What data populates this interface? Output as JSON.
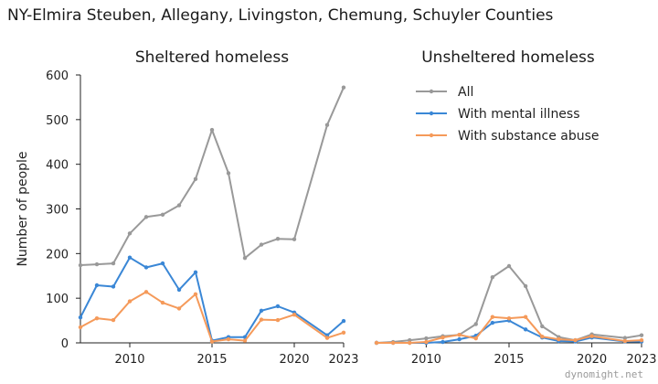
{
  "title": "NY-Elmira Steuben, Allegany, Livingston, Chemung, Schuyler Counties",
  "watermark": "dynomight.net",
  "legend_placement": "top-right of second panel",
  "chart_data": [
    {
      "type": "line",
      "title": "Sheltered homeless",
      "ylabel": "Number of people",
      "xlabel": "",
      "xlim": [
        2007,
        2023
      ],
      "ylim": [
        0,
        600
      ],
      "xticks": [
        2010,
        2015,
        2020,
        2023
      ],
      "yticks": [
        0,
        100,
        200,
        300,
        400,
        500,
        600
      ],
      "x": [
        2007,
        2008,
        2009,
        2010,
        2011,
        2012,
        2013,
        2014,
        2015,
        2016,
        2017,
        2018,
        2019,
        2020,
        2022,
        2023
      ],
      "series": [
        {
          "name": "All",
          "color": "#999999",
          "values": [
            174,
            176,
            178,
            245,
            282,
            287,
            308,
            367,
            477,
            380,
            190,
            220,
            233,
            232,
            488,
            572
          ]
        },
        {
          "name": "With mental illness",
          "color": "#3a87d6",
          "values": [
            57,
            129,
            126,
            191,
            169,
            178,
            119,
            158,
            5,
            13,
            13,
            72,
            82,
            68,
            17,
            49
          ]
        },
        {
          "name": "With substance abuse",
          "color": "#f59a5a",
          "values": [
            35,
            55,
            51,
            93,
            114,
            90,
            77,
            109,
            3,
            8,
            5,
            52,
            51,
            63,
            11,
            23
          ]
        }
      ]
    },
    {
      "type": "line",
      "title": "Unsheltered homeless",
      "ylabel": "",
      "xlabel": "",
      "xlim": [
        2007,
        2023
      ],
      "ylim": [
        0,
        600
      ],
      "xticks": [
        2010,
        2015,
        2020,
        2023
      ],
      "yticks": [],
      "x": [
        2007,
        2008,
        2009,
        2010,
        2011,
        2012,
        2013,
        2014,
        2015,
        2016,
        2017,
        2018,
        2019,
        2020,
        2022,
        2023
      ],
      "series": [
        {
          "name": "All",
          "color": "#999999",
          "values": [
            0,
            2,
            6,
            10,
            15,
            18,
            42,
            147,
            172,
            127,
            37,
            13,
            6,
            19,
            11,
            17
          ]
        },
        {
          "name": "With mental illness",
          "color": "#3a87d6",
          "values": [
            0,
            0,
            0,
            0,
            2,
            8,
            16,
            45,
            50,
            30,
            12,
            4,
            3,
            12,
            3,
            3
          ]
        },
        {
          "name": "With substance abuse",
          "color": "#f59a5a",
          "values": [
            0,
            0,
            0,
            2,
            12,
            18,
            10,
            58,
            55,
            58,
            14,
            8,
            6,
            15,
            4,
            6
          ]
        }
      ]
    }
  ]
}
